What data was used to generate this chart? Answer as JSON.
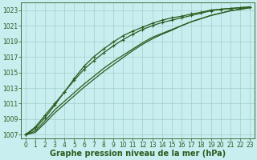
{
  "title": "Graphe pression niveau de la mer (hPa)",
  "background_color": "#c8eef0",
  "grid_color": "#a0d0c8",
  "line_color": "#2d5a1e",
  "text_color": "#2d5a1e",
  "xlim": [
    -0.5,
    23.5
  ],
  "ylim": [
    1006.5,
    1024.0
  ],
  "yticks": [
    1007,
    1009,
    1011,
    1013,
    1015,
    1017,
    1019,
    1021,
    1023
  ],
  "xticks": [
    0,
    1,
    2,
    3,
    4,
    5,
    6,
    7,
    8,
    9,
    10,
    11,
    12,
    13,
    14,
    15,
    16,
    17,
    18,
    19,
    20,
    21,
    22,
    23
  ],
  "series": [
    {
      "values": [
        1007.0,
        1007.5,
        1008.8,
        1010.2,
        1011.3,
        1012.4,
        1013.5,
        1014.5,
        1015.5,
        1016.4,
        1017.2,
        1018.0,
        1018.8,
        1019.5,
        1020.0,
        1020.5,
        1021.0,
        1021.5,
        1021.9,
        1022.3,
        1022.6,
        1022.9,
        1023.1,
        1023.3
      ],
      "marker": false,
      "linewidth": 0.9
    },
    {
      "values": [
        1007.0,
        1007.3,
        1008.5,
        1009.8,
        1010.9,
        1012.0,
        1013.1,
        1014.1,
        1015.1,
        1016.0,
        1016.9,
        1017.8,
        1018.6,
        1019.3,
        1019.9,
        1020.4,
        1021.0,
        1021.5,
        1021.9,
        1022.3,
        1022.6,
        1022.9,
        1023.1,
        1023.3
      ],
      "marker": false,
      "linewidth": 0.9
    },
    {
      "values": [
        1007.0,
        1008.0,
        1009.5,
        1011.0,
        1012.5,
        1014.0,
        1015.4,
        1016.5,
        1017.5,
        1018.4,
        1019.2,
        1019.9,
        1020.5,
        1021.0,
        1021.4,
        1021.7,
        1022.0,
        1022.3,
        1022.6,
        1022.9,
        1023.1,
        1023.2,
        1023.3,
        1023.4
      ],
      "marker": true,
      "linewidth": 0.9
    },
    {
      "values": [
        1007.0,
        1007.8,
        1009.2,
        1010.8,
        1012.5,
        1014.2,
        1015.8,
        1017.0,
        1018.0,
        1018.9,
        1019.7,
        1020.3,
        1020.8,
        1021.3,
        1021.7,
        1022.0,
        1022.2,
        1022.5,
        1022.7,
        1023.0,
        1023.1,
        1023.2,
        1023.3,
        1023.4
      ],
      "marker": true,
      "linewidth": 0.9
    }
  ],
  "title_fontsize": 7,
  "tick_fontsize": 5.5
}
